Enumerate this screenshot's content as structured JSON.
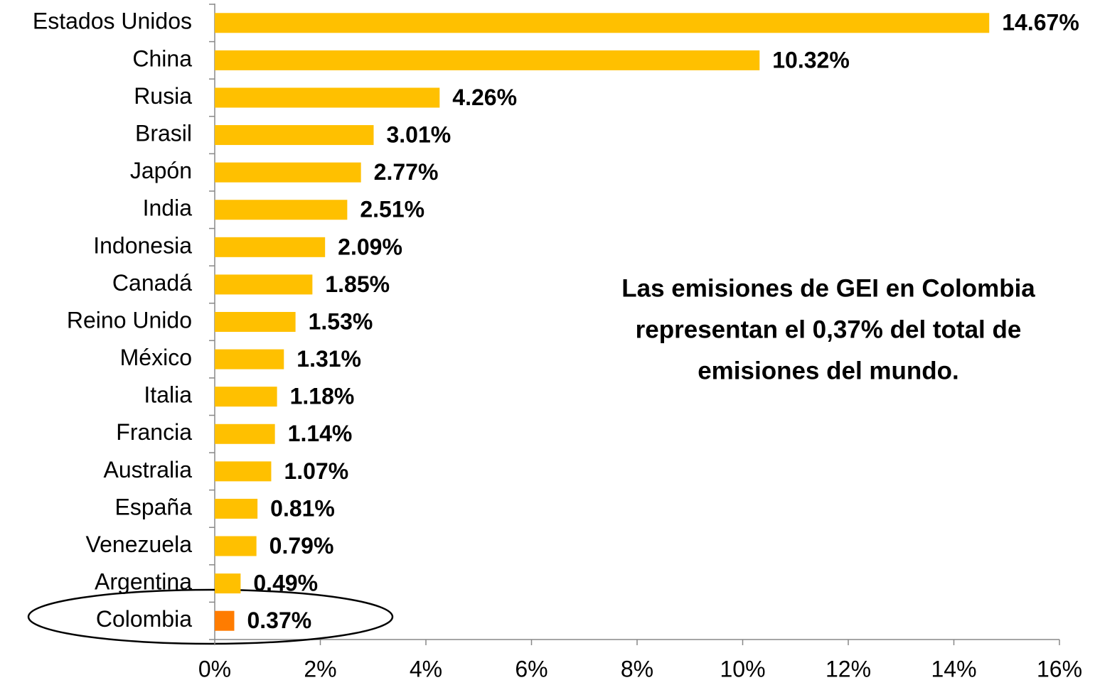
{
  "chart_data": {
    "type": "barh",
    "categories": [
      "Estados Unidos",
      "China",
      "Rusia",
      "Brasil",
      "Japón",
      "India",
      "Indonesia",
      "Canadá",
      "Reino Unido",
      "México",
      "Italia",
      "Francia",
      "Australia",
      "España",
      "Venezuela",
      "Argentina",
      "Colombia"
    ],
    "values": [
      14.67,
      10.32,
      4.26,
      3.01,
      2.77,
      2.51,
      2.09,
      1.85,
      1.53,
      1.31,
      1.18,
      1.14,
      1.07,
      0.81,
      0.79,
      0.49,
      0.37
    ],
    "value_labels": [
      "14.67%",
      "10.32%",
      "4.26%",
      "3.01%",
      "2.77%",
      "2.51%",
      "2.09%",
      "1.85%",
      "1.53%",
      "1.31%",
      "1.18%",
      "1.14%",
      "1.07%",
      "0.81%",
      "0.79%",
      "0.49%",
      "0.37%"
    ],
    "colors": [
      "#FFC000",
      "#FFC000",
      "#FFC000",
      "#FFC000",
      "#FFC000",
      "#FFC000",
      "#FFC000",
      "#FFC000",
      "#FFC000",
      "#FFC000",
      "#FFC000",
      "#FFC000",
      "#FFC000",
      "#FFC000",
      "#FFC000",
      "#FFC000",
      "#FF7C00"
    ],
    "xlim": [
      0,
      16
    ],
    "xticks": [
      {
        "value": 0,
        "label": "0%"
      },
      {
        "value": 2,
        "label": "2%"
      },
      {
        "value": 4,
        "label": "4%"
      },
      {
        "value": 6,
        "label": "6%"
      },
      {
        "value": 8,
        "label": "8%"
      },
      {
        "value": 10,
        "label": "10%"
      },
      {
        "value": 12,
        "label": "12%"
      },
      {
        "value": 14,
        "label": "14%"
      },
      {
        "value": 16,
        "label": "16%"
      }
    ],
    "annotation": [
      "Las emisiones de GEI en Colombia",
      "representan el 0,37% del total de",
      "emisiones del mundo."
    ]
  }
}
